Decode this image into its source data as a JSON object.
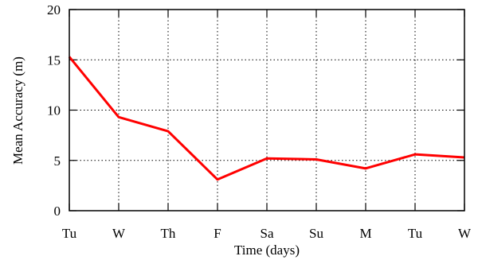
{
  "chart_data": {
    "type": "line",
    "title": "",
    "xlabel": "Time (days)",
    "ylabel": "Mean Accuracy (m)",
    "categories": [
      "Tu",
      "W",
      "Th",
      "F",
      "Sa",
      "Su",
      "M",
      "Tu",
      "W"
    ],
    "yticks": [
      0,
      5,
      10,
      15,
      20
    ],
    "ylim": [
      0,
      20
    ],
    "grid": true,
    "series": [
      {
        "color": "#ff0000",
        "values": [
          15.3,
          9.3,
          7.9,
          3.1,
          5.2,
          5.1,
          4.2,
          5.6,
          5.3
        ]
      }
    ]
  }
}
